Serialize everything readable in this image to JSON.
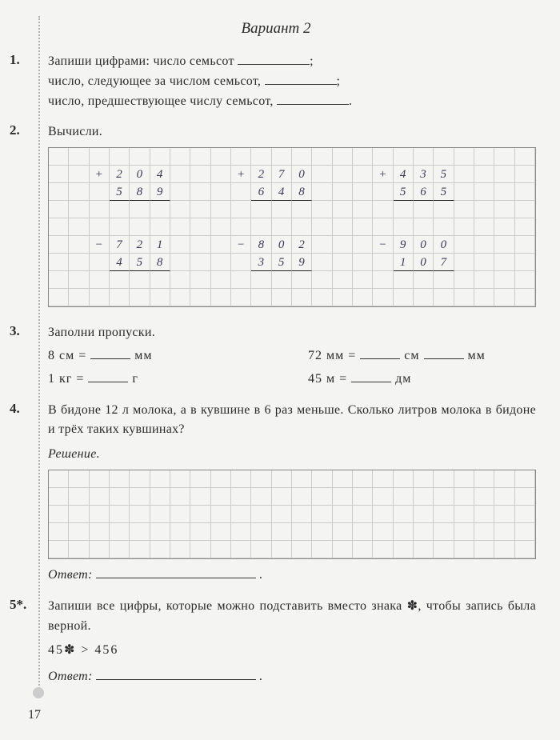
{
  "title": "Вариант 2",
  "pageNumber": "17",
  "tasks": {
    "t1": {
      "num": "1.",
      "line1a": "Запиши цифрами: число семьсот",
      "line1b": ";",
      "line2a": "число, следующее за числом семьсот,",
      "line2b": ";",
      "line3a": "число, предшествующее числу семьсот,",
      "line3b": "."
    },
    "t2": {
      "num": "2.",
      "text": "Вычисли.",
      "grid": {
        "cols": 24,
        "rows": 9,
        "cells": [
          {
            "r": 1,
            "c": 2,
            "v": "+"
          },
          {
            "r": 1,
            "c": 3,
            "v": "2",
            "u": false
          },
          {
            "r": 1,
            "c": 4,
            "v": "0"
          },
          {
            "r": 1,
            "c": 5,
            "v": "4"
          },
          {
            "r": 2,
            "c": 3,
            "v": "5",
            "u": true
          },
          {
            "r": 2,
            "c": 4,
            "v": "8",
            "u": true
          },
          {
            "r": 2,
            "c": 5,
            "v": "9",
            "u": true
          },
          {
            "r": 1,
            "c": 9,
            "v": "+"
          },
          {
            "r": 1,
            "c": 10,
            "v": "2"
          },
          {
            "r": 1,
            "c": 11,
            "v": "7"
          },
          {
            "r": 1,
            "c": 12,
            "v": "0"
          },
          {
            "r": 2,
            "c": 10,
            "v": "6",
            "u": true
          },
          {
            "r": 2,
            "c": 11,
            "v": "4",
            "u": true
          },
          {
            "r": 2,
            "c": 12,
            "v": "8",
            "u": true
          },
          {
            "r": 1,
            "c": 16,
            "v": "+"
          },
          {
            "r": 1,
            "c": 17,
            "v": "4"
          },
          {
            "r": 1,
            "c": 18,
            "v": "3"
          },
          {
            "r": 1,
            "c": 19,
            "v": "5"
          },
          {
            "r": 2,
            "c": 17,
            "v": "5",
            "u": true
          },
          {
            "r": 2,
            "c": 18,
            "v": "6",
            "u": true
          },
          {
            "r": 2,
            "c": 19,
            "v": "5",
            "u": true
          },
          {
            "r": 5,
            "c": 2,
            "v": "−"
          },
          {
            "r": 5,
            "c": 3,
            "v": "7"
          },
          {
            "r": 5,
            "c": 4,
            "v": "2"
          },
          {
            "r": 5,
            "c": 5,
            "v": "1"
          },
          {
            "r": 6,
            "c": 3,
            "v": "4",
            "u": true
          },
          {
            "r": 6,
            "c": 4,
            "v": "5",
            "u": true
          },
          {
            "r": 6,
            "c": 5,
            "v": "8",
            "u": true
          },
          {
            "r": 5,
            "c": 9,
            "v": "−"
          },
          {
            "r": 5,
            "c": 10,
            "v": "8"
          },
          {
            "r": 5,
            "c": 11,
            "v": "0"
          },
          {
            "r": 5,
            "c": 12,
            "v": "2"
          },
          {
            "r": 6,
            "c": 10,
            "v": "3",
            "u": true
          },
          {
            "r": 6,
            "c": 11,
            "v": "5",
            "u": true
          },
          {
            "r": 6,
            "c": 12,
            "v": "9",
            "u": true
          },
          {
            "r": 5,
            "c": 16,
            "v": "−"
          },
          {
            "r": 5,
            "c": 17,
            "v": "9"
          },
          {
            "r": 5,
            "c": 18,
            "v": "0"
          },
          {
            "r": 5,
            "c": 19,
            "v": "0"
          },
          {
            "r": 6,
            "c": 17,
            "v": "1",
            "u": true
          },
          {
            "r": 6,
            "c": 18,
            "v": "0",
            "u": true
          },
          {
            "r": 6,
            "c": 19,
            "v": "7",
            "u": true
          }
        ]
      }
    },
    "t3": {
      "num": "3.",
      "text": "Заполни пропуски.",
      "r1a": "8 см =",
      "r1au": "мм",
      "r1b": "72 мм =",
      "r1bu1": "см",
      "r1bu2": "мм",
      "r2a": "1 кг =",
      "r2au": "г",
      "r2b": "45 м =",
      "r2bu": "дм"
    },
    "t4": {
      "num": "4.",
      "text": "В бидоне 12 л молока, а в кувшине в 6 раз меньше. Сколько литров молока в бидоне и трёх таких кувшинах?",
      "solution": "Решение.",
      "answer": "Ответ:"
    },
    "t5": {
      "num": "5*.",
      "text": "Запиши все цифры, которые можно подставить вместо знака ✽, чтобы запись была верной.",
      "expr": "45✽ > 456",
      "answer": "Ответ:"
    }
  }
}
